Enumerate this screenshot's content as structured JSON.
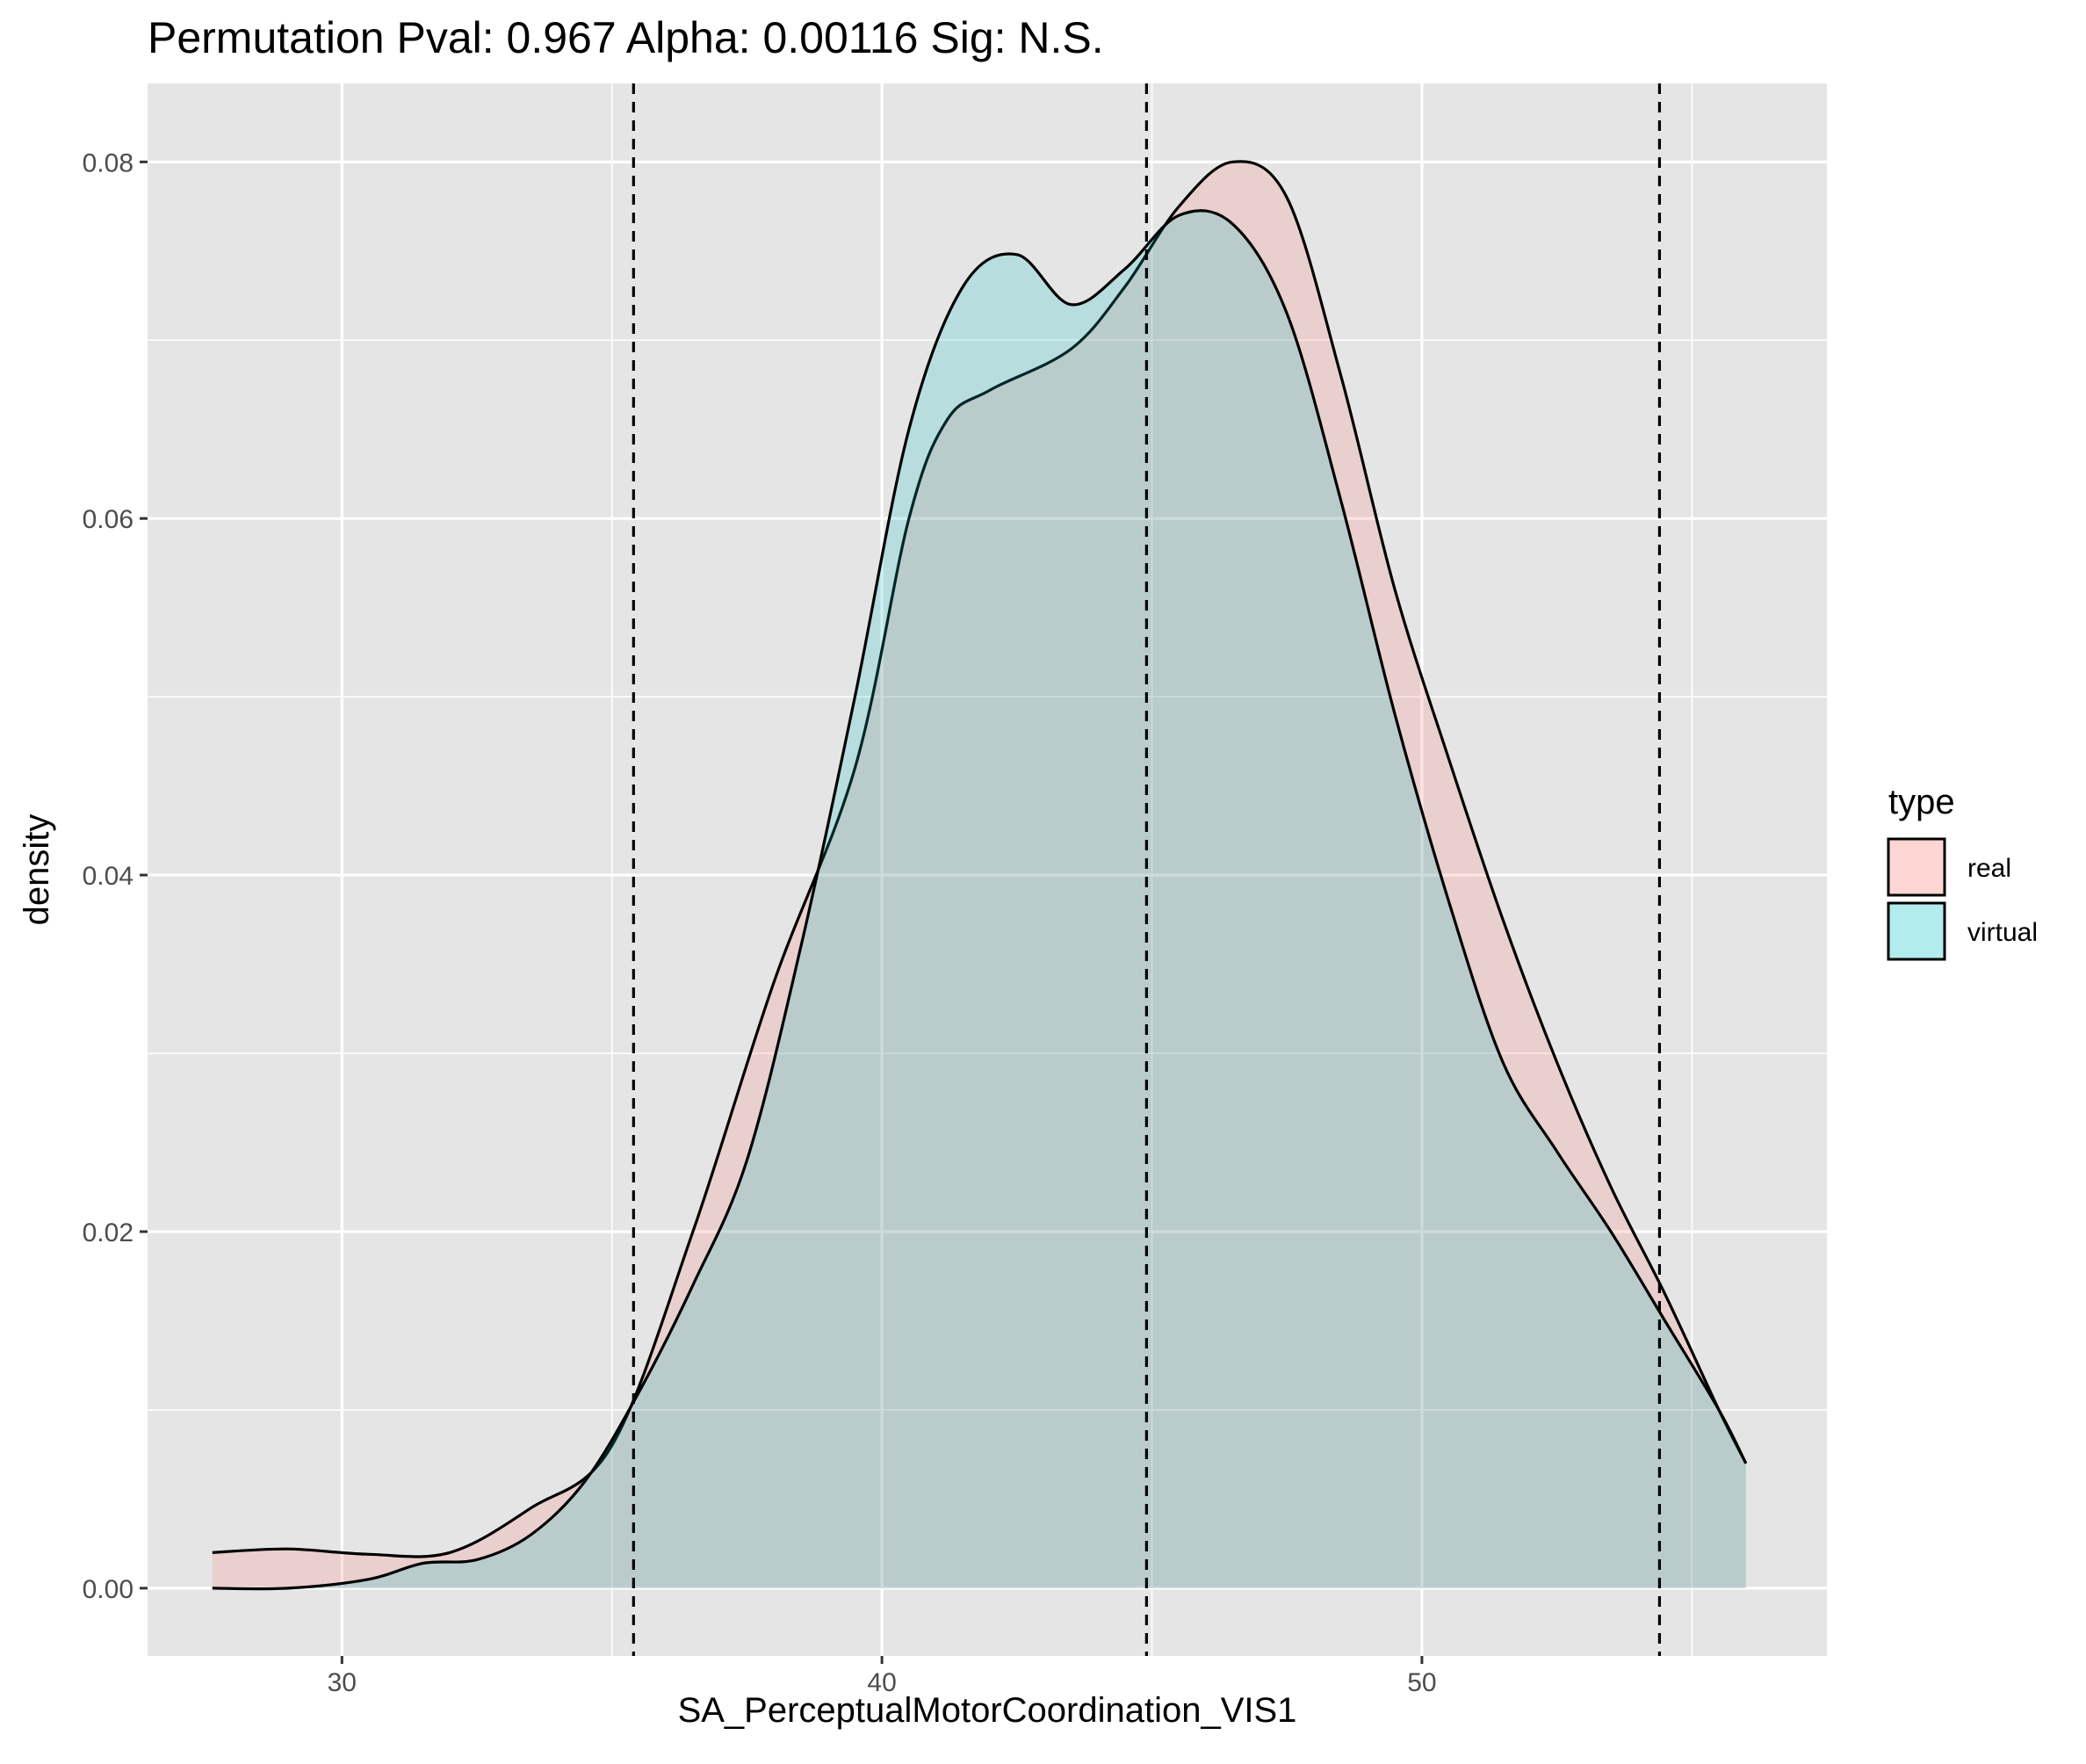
{
  "chart_data": {
    "type": "area",
    "title": "Permutation Pval: 0.967 Alpha: 0.00116 Sig: N.S.",
    "xlabel": "SA_PerceptualMotorCoordination_VIS1",
    "ylabel": "density",
    "xlim": [
      26.4,
      57.5
    ],
    "ylim": [
      -0.0038,
      0.0844
    ],
    "x_ticks": [
      30,
      40,
      50
    ],
    "x_tick_labels": [
      "30",
      "40",
      "50"
    ],
    "y_ticks": [
      0,
      0.02,
      0.04,
      0.06,
      0.08
    ],
    "y_tick_labels": [
      "0.00",
      "0.02",
      "0.04",
      "0.06",
      "0.08"
    ],
    "grid": true,
    "vlines": [
      35.4,
      44.9,
      54.4
    ],
    "legend": {
      "title": "type",
      "position": "right"
    },
    "colors": {
      "panel": "#e5e5e5",
      "grid": "#ffffff",
      "real": "#f8766d",
      "virtual": "#00bfc4",
      "fill_alpha": 0.2
    },
    "series": [
      {
        "name": "real",
        "x": [
          27.6,
          29.0,
          30.5,
          32.0,
          33.5,
          35.0,
          36.5,
          38.0,
          39.5,
          40.5,
          41.2,
          42.0,
          43.5,
          44.5,
          45.5,
          46.5,
          47.5,
          48.5,
          49.5,
          50.5,
          51.5,
          52.5,
          53.5,
          54.5,
          55.5,
          56.0
        ],
        "y": [
          0.002,
          0.0022,
          0.0019,
          0.002,
          0.0045,
          0.008,
          0.02,
          0.034,
          0.046,
          0.06,
          0.0655,
          0.0672,
          0.0695,
          0.073,
          0.0775,
          0.08,
          0.078,
          0.068,
          0.056,
          0.0465,
          0.0375,
          0.0295,
          0.0225,
          0.0165,
          0.01,
          0.007
        ]
      },
      {
        "name": "virtual",
        "x": [
          27.6,
          29.0,
          30.5,
          31.5,
          32.5,
          33.5,
          34.5,
          35.5,
          36.5,
          37.5,
          38.5,
          39.5,
          40.5,
          41.5,
          42.5,
          43.5,
          44.5,
          45.5,
          46.5,
          47.5,
          48.5,
          49.5,
          50.5,
          51.5,
          52.5,
          53.5,
          54.5,
          55.5,
          56.0
        ],
        "y": [
          0.0,
          0.0,
          0.0005,
          0.0014,
          0.0016,
          0.003,
          0.006,
          0.011,
          0.017,
          0.024,
          0.036,
          0.05,
          0.065,
          0.073,
          0.0748,
          0.072,
          0.074,
          0.077,
          0.0765,
          0.0715,
          0.061,
          0.049,
          0.0385,
          0.0295,
          0.0245,
          0.02,
          0.015,
          0.01,
          0.007
        ]
      }
    ]
  }
}
